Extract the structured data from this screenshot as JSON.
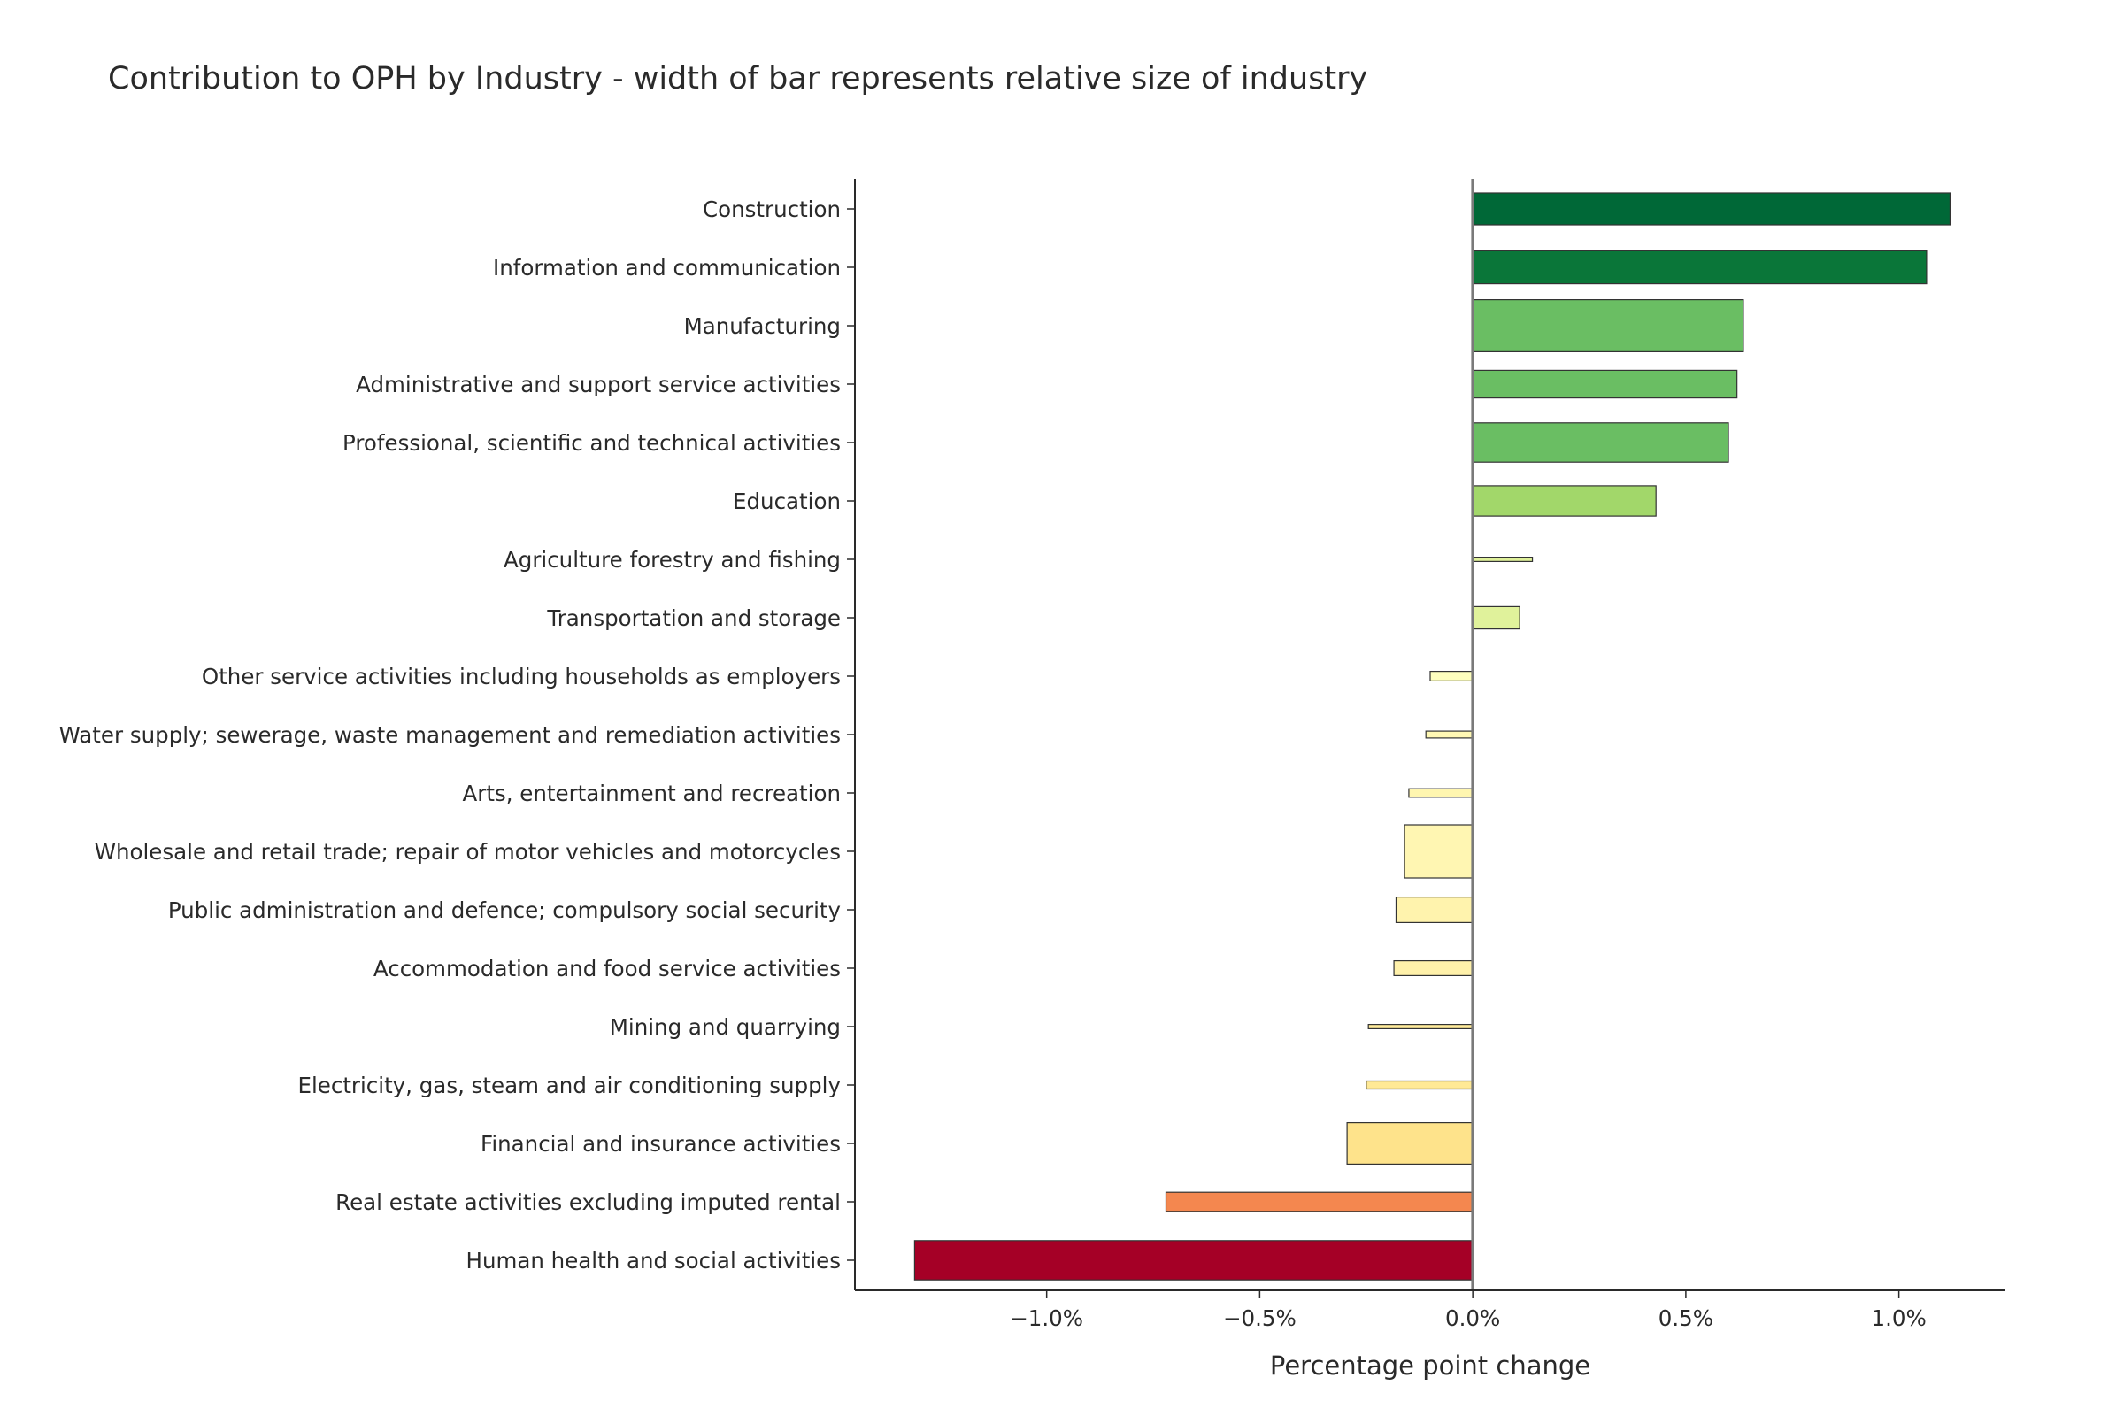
{
  "chart_data": {
    "type": "bar",
    "orientation": "horizontal",
    "title": "Contribution to OPH by Industry - width of bar represents relative size of industry",
    "xlabel": "Percentage point change",
    "ylabel": "",
    "xlim": [
      -1.45,
      1.25
    ],
    "x_ticks": [
      -1.0,
      -0.5,
      0.0,
      0.5,
      1.0
    ],
    "x_tick_labels": [
      "−1.0%",
      "−0.5%",
      "0.0%",
      "0.5%",
      "1.0%"
    ],
    "grid": false,
    "legend": "none",
    "bars": [
      {
        "category": "Construction",
        "value": 1.12,
        "relative_size": 0.06,
        "color": "#006837"
      },
      {
        "category": "Information and communication",
        "value": 1.065,
        "relative_size": 0.062,
        "color": "#0a7639"
      },
      {
        "category": "Manufacturing",
        "value": 0.635,
        "relative_size": 0.098,
        "color": "#6abe63"
      },
      {
        "category": "Administrative and support service activities",
        "value": 0.62,
        "relative_size": 0.052,
        "color": "#6abe63"
      },
      {
        "category": "Professional, scientific and technical activities",
        "value": 0.6,
        "relative_size": 0.074,
        "color": "#6abe63"
      },
      {
        "category": "Education",
        "value": 0.43,
        "relative_size": 0.057,
        "color": "#a2d76a"
      },
      {
        "category": "Agriculture forestry and fishing",
        "value": 0.14,
        "relative_size": 0.008,
        "color": "#dff19a"
      },
      {
        "category": "Transportation and storage",
        "value": 0.11,
        "relative_size": 0.042,
        "color": "#e0f29b"
      },
      {
        "category": "Other service activities including households as employers",
        "value": -0.1,
        "relative_size": 0.018,
        "color": "#feffbe"
      },
      {
        "category": "Water supply; sewerage, waste management and remediation activities",
        "value": -0.11,
        "relative_size": 0.013,
        "color": "#fff8b4"
      },
      {
        "category": "Arts, entertainment and recreation",
        "value": -0.15,
        "relative_size": 0.016,
        "color": "#fff6b0"
      },
      {
        "category": "Wholesale and retail trade; repair of motor vehicles and motorcycles",
        "value": -0.16,
        "relative_size": 0.1,
        "color": "#fff6b2"
      },
      {
        "category": "Public administration and defence; compulsory social security",
        "value": -0.18,
        "relative_size": 0.048,
        "color": "#fff3ad"
      },
      {
        "category": "Accommodation and food service activities",
        "value": -0.185,
        "relative_size": 0.028,
        "color": "#fff1aa"
      },
      {
        "category": "Mining and quarrying",
        "value": -0.245,
        "relative_size": 0.008,
        "color": "#ffeb9a"
      },
      {
        "category": "Electricity, gas, steam and air conditioning supply",
        "value": -0.25,
        "relative_size": 0.015,
        "color": "#ffe996"
      },
      {
        "category": "Financial and insurance activities",
        "value": -0.295,
        "relative_size": 0.078,
        "color": "#fee38b"
      },
      {
        "category": "Real estate activities excluding imputed rental",
        "value": -0.72,
        "relative_size": 0.036,
        "color": "#f4874f"
      },
      {
        "category": "Human health and social activities",
        "value": -1.31,
        "relative_size": 0.074,
        "color": "#a50026"
      }
    ]
  }
}
